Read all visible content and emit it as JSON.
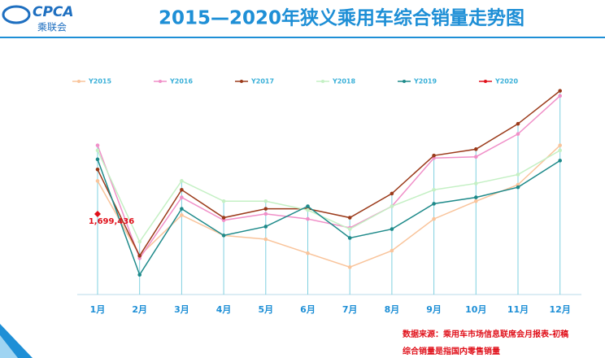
{
  "logo": {
    "brand": "CPCA",
    "name": "乘联会"
  },
  "chart_data": {
    "type": "line",
    "title": "2015—2020年狭义乘用车综合销量走势图",
    "categories": [
      "1月",
      "2月",
      "3月",
      "4月",
      "5月",
      "6月",
      "7月",
      "8月",
      "9月",
      "10月",
      "11月",
      "12月"
    ],
    "ylim": [
      1000000,
      3200000
    ],
    "series": [
      {
        "name": "Y2015",
        "color": "#f9c49b",
        "values": [
          1960000,
          1370000,
          1690000,
          1530000,
          1500000,
          1390000,
          1280000,
          1410000,
          1660000,
          1800000,
          1930000,
          2240000
        ]
      },
      {
        "name": "Y2016",
        "color": "#f08fc8",
        "values": [
          2240000,
          1350000,
          1830000,
          1650000,
          1700000,
          1660000,
          1590000,
          1760000,
          2140000,
          2150000,
          2330000,
          2630000
        ]
      },
      {
        "name": "Y2017",
        "color": "#9b3a1a",
        "values": [
          2050000,
          1370000,
          1890000,
          1670000,
          1740000,
          1740000,
          1670000,
          1860000,
          2160000,
          2210000,
          2410000,
          2670000
        ]
      },
      {
        "name": "Y2018",
        "color": "#c4f0c4",
        "values": [
          2200000,
          1480000,
          1960000,
          1800000,
          1800000,
          1730000,
          1580000,
          1760000,
          1890000,
          1940000,
          2010000,
          2200000
        ]
      },
      {
        "name": "Y2019",
        "color": "#1e8a8a",
        "values": [
          2130000,
          1220000,
          1740000,
          1530000,
          1600000,
          1760000,
          1510000,
          1580000,
          1780000,
          1830000,
          1910000,
          2120000
        ]
      },
      {
        "name": "Y2020",
        "color": "#e0101a",
        "values": [
          1699436,
          null,
          null,
          null,
          null,
          null,
          null,
          null,
          null,
          null,
          null,
          null
        ],
        "value_labels": [
          "1,699,436",
          null,
          null,
          null,
          null,
          null,
          null,
          null,
          null,
          null,
          null,
          null
        ]
      }
    ]
  },
  "notes": [
    "数据来源：乘用车市场信息联席会月报表-初稿",
    "综合销量是指国内零售销量"
  ]
}
